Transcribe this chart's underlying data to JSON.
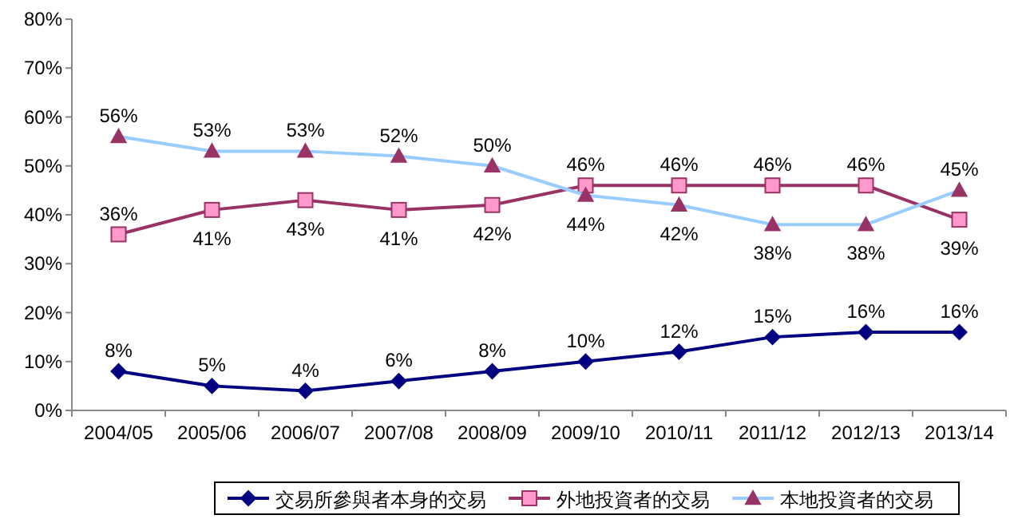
{
  "chart_data": {
    "type": "line",
    "categories": [
      "2004/05",
      "2005/06",
      "2006/07",
      "2007/08",
      "2008/09",
      "2009/10",
      "2010/11",
      "2011/12",
      "2012/13",
      "2013/14"
    ],
    "series": [
      {
        "name": "交易所參與者本身的交易",
        "color": "#000080",
        "marker": "diamond",
        "values": [
          8,
          5,
          4,
          6,
          8,
          10,
          12,
          15,
          16,
          16
        ],
        "value_labels": [
          "8%",
          "5%",
          "4%",
          "6%",
          "8%",
          "10%",
          "12%",
          "15%",
          "16%",
          "16%"
        ]
      },
      {
        "name": "外地投資者的交易",
        "color": "#993366",
        "marker": "square",
        "values": [
          36,
          41,
          43,
          41,
          42,
          46,
          46,
          46,
          46,
          39
        ],
        "value_labels": [
          "36%",
          "41%",
          "43%",
          "41%",
          "42%",
          "46%",
          "46%",
          "46%",
          "46%",
          "39%"
        ]
      },
      {
        "name": "本地投資者的交易",
        "color": "#99ccff",
        "marker": "triangle",
        "values": [
          56,
          53,
          53,
          52,
          50,
          44,
          42,
          38,
          38,
          45
        ],
        "value_labels": [
          "56%",
          "53%",
          "53%",
          "52%",
          "50%",
          "44%",
          "42%",
          "38%",
          "38%",
          "45%"
        ]
      }
    ],
    "ylim": [
      0,
      80
    ],
    "yticks": [
      {
        "value": 0,
        "label": "0%"
      },
      {
        "value": 10,
        "label": "10%"
      },
      {
        "value": 20,
        "label": "20%"
      },
      {
        "value": 30,
        "label": "30%"
      },
      {
        "value": 40,
        "label": "40%"
      },
      {
        "value": 50,
        "label": "50%"
      },
      {
        "value": 60,
        "label": "60%"
      },
      {
        "value": 70,
        "label": "70%"
      },
      {
        "value": 80,
        "label": "80%"
      }
    ],
    "legend": "bottom"
  }
}
